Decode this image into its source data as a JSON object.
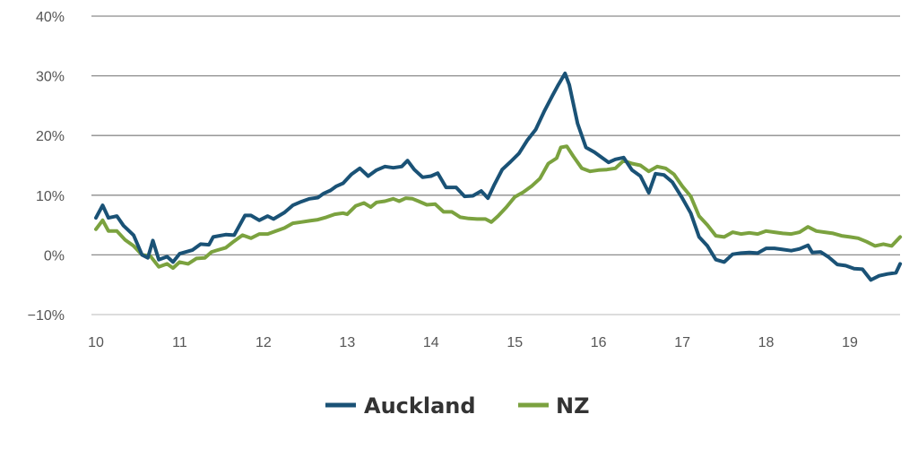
{
  "chart_data": {
    "type": "line",
    "xlabel": "",
    "ylabel": "",
    "x_range": [
      10.0,
      19.6
    ],
    "ylim": [
      -10,
      40
    ],
    "y_ticks": [
      -10,
      0,
      10,
      20,
      30,
      40
    ],
    "y_tick_labels": [
      "−10%",
      "0%",
      "10%",
      "20%",
      "30%",
      "40%"
    ],
    "x_ticks": [
      10,
      11,
      12,
      13,
      14,
      15,
      16,
      17,
      18,
      19
    ],
    "x_tick_labels": [
      "10",
      "11",
      "12",
      "13",
      "14",
      "15",
      "16",
      "17",
      "18",
      "19"
    ],
    "grid": "horizontal",
    "legend_position": "bottom-center",
    "series": [
      {
        "name": "Auckland",
        "color": "#1a5276",
        "points": [
          [
            10.0,
            6.2
          ],
          [
            10.08,
            8.3
          ],
          [
            10.15,
            6.2
          ],
          [
            10.25,
            6.5
          ],
          [
            10.33,
            4.9
          ],
          [
            10.45,
            3.3
          ],
          [
            10.55,
            0.0
          ],
          [
            10.62,
            -0.5
          ],
          [
            10.68,
            2.4
          ],
          [
            10.75,
            -0.8
          ],
          [
            10.85,
            -0.3
          ],
          [
            10.92,
            -1.2
          ],
          [
            11.0,
            0.2
          ],
          [
            11.15,
            0.8
          ],
          [
            11.25,
            1.8
          ],
          [
            11.35,
            1.7
          ],
          [
            11.4,
            3.0
          ],
          [
            11.55,
            3.4
          ],
          [
            11.65,
            3.3
          ],
          [
            11.78,
            6.6
          ],
          [
            11.85,
            6.6
          ],
          [
            11.95,
            5.8
          ],
          [
            12.05,
            6.5
          ],
          [
            12.12,
            6.0
          ],
          [
            12.25,
            7.1
          ],
          [
            12.35,
            8.3
          ],
          [
            12.45,
            8.9
          ],
          [
            12.55,
            9.4
          ],
          [
            12.65,
            9.6
          ],
          [
            12.72,
            10.3
          ],
          [
            12.8,
            10.8
          ],
          [
            12.87,
            11.5
          ],
          [
            12.95,
            12.0
          ],
          [
            13.05,
            13.5
          ],
          [
            13.15,
            14.5
          ],
          [
            13.25,
            13.2
          ],
          [
            13.35,
            14.2
          ],
          [
            13.45,
            14.8
          ],
          [
            13.55,
            14.6
          ],
          [
            13.65,
            14.8
          ],
          [
            13.72,
            15.8
          ],
          [
            13.8,
            14.3
          ],
          [
            13.9,
            13.0
          ],
          [
            14.0,
            13.2
          ],
          [
            14.08,
            13.7
          ],
          [
            14.18,
            11.3
          ],
          [
            14.3,
            11.3
          ],
          [
            14.4,
            9.8
          ],
          [
            14.5,
            9.9
          ],
          [
            14.6,
            10.7
          ],
          [
            14.68,
            9.5
          ],
          [
            14.75,
            11.6
          ],
          [
            14.85,
            14.3
          ],
          [
            14.95,
            15.6
          ],
          [
            15.05,
            17.0
          ],
          [
            15.15,
            19.2
          ],
          [
            15.25,
            21.0
          ],
          [
            15.35,
            24.0
          ],
          [
            15.45,
            26.7
          ],
          [
            15.52,
            28.5
          ],
          [
            15.6,
            30.4
          ],
          [
            15.65,
            28.5
          ],
          [
            15.75,
            22.0
          ],
          [
            15.85,
            18.0
          ],
          [
            15.95,
            17.2
          ],
          [
            16.05,
            16.2
          ],
          [
            16.12,
            15.5
          ],
          [
            16.2,
            16.0
          ],
          [
            16.3,
            16.3
          ],
          [
            16.4,
            14.2
          ],
          [
            16.5,
            13.2
          ],
          [
            16.6,
            10.4
          ],
          [
            16.68,
            13.6
          ],
          [
            16.78,
            13.4
          ],
          [
            16.88,
            12.2
          ],
          [
            17.0,
            9.5
          ],
          [
            17.1,
            7.0
          ],
          [
            17.2,
            3.0
          ],
          [
            17.3,
            1.5
          ],
          [
            17.4,
            -0.8
          ],
          [
            17.5,
            -1.2
          ],
          [
            17.6,
            0.1
          ],
          [
            17.7,
            0.3
          ],
          [
            17.8,
            0.4
          ],
          [
            17.9,
            0.3
          ],
          [
            18.0,
            1.1
          ],
          [
            18.1,
            1.1
          ],
          [
            18.2,
            0.9
          ],
          [
            18.3,
            0.7
          ],
          [
            18.4,
            1.0
          ],
          [
            18.5,
            1.6
          ],
          [
            18.55,
            0.4
          ],
          [
            18.65,
            0.5
          ],
          [
            18.75,
            -0.4
          ],
          [
            18.85,
            -1.6
          ],
          [
            18.95,
            -1.8
          ],
          [
            19.05,
            -2.3
          ],
          [
            19.15,
            -2.4
          ],
          [
            19.25,
            -4.2
          ],
          [
            19.35,
            -3.5
          ],
          [
            19.45,
            -3.2
          ],
          [
            19.55,
            -3.0
          ],
          [
            19.6,
            -1.5
          ]
        ]
      },
      {
        "name": "NZ",
        "color": "#7ba23f",
        "points": [
          [
            10.0,
            4.3
          ],
          [
            10.08,
            5.8
          ],
          [
            10.15,
            4.0
          ],
          [
            10.25,
            4.0
          ],
          [
            10.35,
            2.5
          ],
          [
            10.45,
            1.5
          ],
          [
            10.55,
            0.0
          ],
          [
            10.65,
            -0.2
          ],
          [
            10.75,
            -2.0
          ],
          [
            10.85,
            -1.5
          ],
          [
            10.92,
            -2.2
          ],
          [
            11.0,
            -1.2
          ],
          [
            11.1,
            -1.5
          ],
          [
            11.2,
            -0.6
          ],
          [
            11.3,
            -0.5
          ],
          [
            11.38,
            0.5
          ],
          [
            11.45,
            0.8
          ],
          [
            11.55,
            1.2
          ],
          [
            11.65,
            2.3
          ],
          [
            11.75,
            3.3
          ],
          [
            11.85,
            2.8
          ],
          [
            11.95,
            3.5
          ],
          [
            12.05,
            3.5
          ],
          [
            12.15,
            4.0
          ],
          [
            12.25,
            4.5
          ],
          [
            12.35,
            5.3
          ],
          [
            12.45,
            5.5
          ],
          [
            12.55,
            5.7
          ],
          [
            12.65,
            5.9
          ],
          [
            12.75,
            6.3
          ],
          [
            12.85,
            6.8
          ],
          [
            12.95,
            7.0
          ],
          [
            13.0,
            6.8
          ],
          [
            13.1,
            8.2
          ],
          [
            13.2,
            8.7
          ],
          [
            13.28,
            8.0
          ],
          [
            13.35,
            8.8
          ],
          [
            13.45,
            9.0
          ],
          [
            13.55,
            9.4
          ],
          [
            13.62,
            9.0
          ],
          [
            13.7,
            9.5
          ],
          [
            13.78,
            9.4
          ],
          [
            13.85,
            9.0
          ],
          [
            13.95,
            8.4
          ],
          [
            14.05,
            8.5
          ],
          [
            14.15,
            7.2
          ],
          [
            14.25,
            7.2
          ],
          [
            14.35,
            6.3
          ],
          [
            14.45,
            6.1
          ],
          [
            14.55,
            6.0
          ],
          [
            14.65,
            6.0
          ],
          [
            14.72,
            5.5
          ],
          [
            14.8,
            6.5
          ],
          [
            14.9,
            8.0
          ],
          [
            15.0,
            9.7
          ],
          [
            15.1,
            10.5
          ],
          [
            15.2,
            11.5
          ],
          [
            15.3,
            12.8
          ],
          [
            15.4,
            15.3
          ],
          [
            15.5,
            16.2
          ],
          [
            15.55,
            18.0
          ],
          [
            15.62,
            18.2
          ],
          [
            15.7,
            16.5
          ],
          [
            15.8,
            14.5
          ],
          [
            15.9,
            14.0
          ],
          [
            16.0,
            14.2
          ],
          [
            16.1,
            14.3
          ],
          [
            16.2,
            14.5
          ],
          [
            16.3,
            15.8
          ],
          [
            16.4,
            15.3
          ],
          [
            16.5,
            15.0
          ],
          [
            16.6,
            14.0
          ],
          [
            16.7,
            14.8
          ],
          [
            16.8,
            14.5
          ],
          [
            16.9,
            13.5
          ],
          [
            17.0,
            11.5
          ],
          [
            17.1,
            9.8
          ],
          [
            17.2,
            6.5
          ],
          [
            17.3,
            5.0
          ],
          [
            17.4,
            3.2
          ],
          [
            17.5,
            3.0
          ],
          [
            17.6,
            3.8
          ],
          [
            17.7,
            3.5
          ],
          [
            17.8,
            3.7
          ],
          [
            17.9,
            3.5
          ],
          [
            18.0,
            4.0
          ],
          [
            18.1,
            3.8
          ],
          [
            18.2,
            3.6
          ],
          [
            18.3,
            3.5
          ],
          [
            18.4,
            3.8
          ],
          [
            18.5,
            4.7
          ],
          [
            18.6,
            4.0
          ],
          [
            18.7,
            3.8
          ],
          [
            18.8,
            3.6
          ],
          [
            18.9,
            3.2
          ],
          [
            19.0,
            3.0
          ],
          [
            19.1,
            2.8
          ],
          [
            19.2,
            2.2
          ],
          [
            19.3,
            1.5
          ],
          [
            19.4,
            1.8
          ],
          [
            19.5,
            1.5
          ],
          [
            19.6,
            3.0
          ]
        ]
      }
    ]
  }
}
